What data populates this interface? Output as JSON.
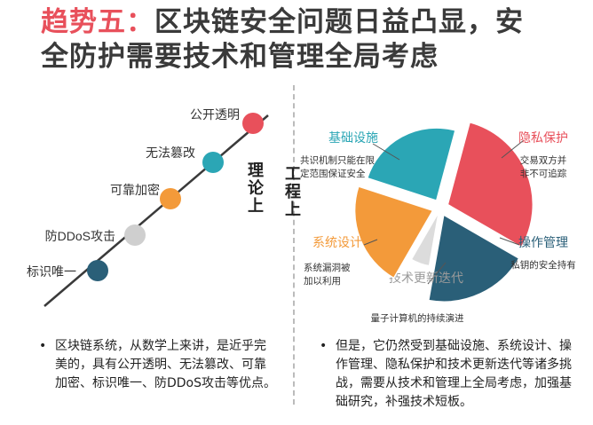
{
  "title": {
    "highlight": "趋势五：",
    "line1_rest": "区块链安全问题日益凸显，安",
    "line2": "全防护需要技术和管理全局考虑"
  },
  "left_label": "理论上",
  "right_label": "工程上",
  "theory_points": [
    {
      "label": "公开透明",
      "color": "#e8505b"
    },
    {
      "label": "无法篡改",
      "color": "#2ba6b5"
    },
    {
      "label": "可靠加密",
      "color": "#f39a3a"
    },
    {
      "label": "防DDoS攻击",
      "color": "#cfcfcf"
    },
    {
      "label": "标识唯一",
      "color": "#2a5f78"
    }
  ],
  "pie": {
    "segments": [
      {
        "name": "隐私保护",
        "desc": [
          "交易双方并",
          "非不可追踪"
        ],
        "color": "#e8505b"
      },
      {
        "name": "操作管理",
        "desc": [
          "私钥的安全持有"
        ],
        "color": "#2a5f78"
      },
      {
        "name": "技术更新迭代",
        "desc": [
          "量子计算机的持续演进"
        ],
        "color": "#dcdcdc"
      },
      {
        "name": "系统设计",
        "desc": [
          "系统漏洞被",
          "加以利用"
        ],
        "color": "#f39a3a"
      },
      {
        "name": "基础设施",
        "desc": [
          "共识机制只能在限",
          "定范围保证安全"
        ],
        "color": "#2ba6b5"
      }
    ]
  },
  "bullets": {
    "left": "区块链系统，从数学上来讲，是近乎完美的，具有公开透明、无法篡改、可靠加密、标识唯一、防DDoS攻击等优点。",
    "right": "但是，它仍然受到基础设施、系统设计、操作管理、隐私保护和技术更新迭代等诸多挑战，需要从技术和管理上全局考虑，加强基础研究，补强技术短板。",
    "marker": "•"
  }
}
